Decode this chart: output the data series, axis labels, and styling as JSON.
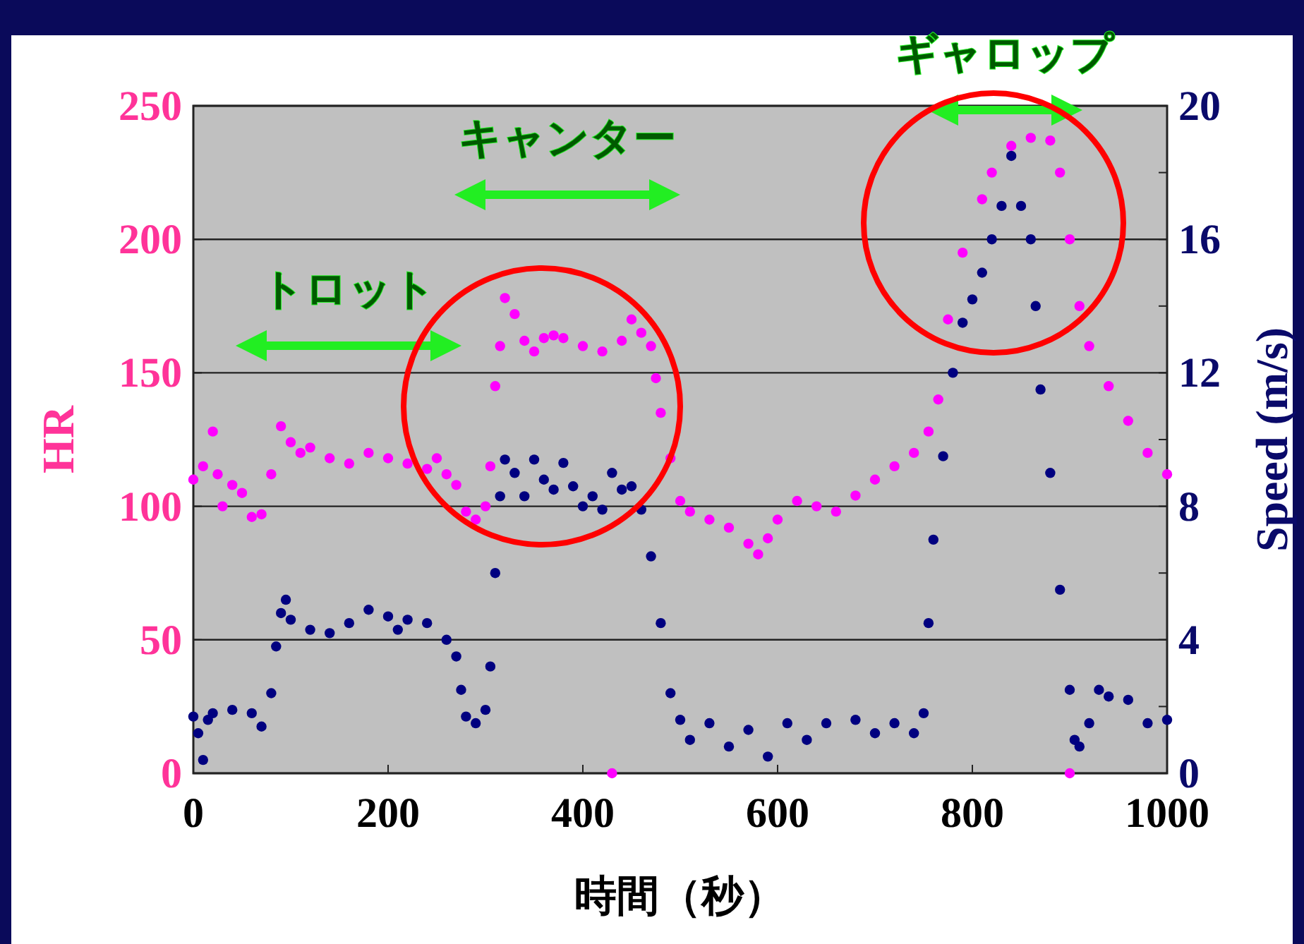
{
  "chart_data": {
    "type": "scatter",
    "xlabel": "時間（秒）",
    "ylabel": "HR",
    "y2label": "Speed (m/s)",
    "marker": "circle",
    "grid": "y",
    "xlim": [
      0,
      1000
    ],
    "xticks": [
      0,
      200,
      400,
      600,
      800,
      1000
    ],
    "ylim": [
      0,
      250
    ],
    "yticks": [
      0,
      50,
      100,
      150,
      200,
      250
    ],
    "y2lim": [
      0,
      20
    ],
    "y2ticks": [
      0,
      {
        "value": 2,
        "label": null
      },
      4,
      {
        "value": 6,
        "label": null
      },
      8,
      {
        "value": 10,
        "label": null
      },
      12,
      {
        "value": 14,
        "label": null
      },
      16,
      {
        "value": 18,
        "label": null
      },
      20
    ],
    "annotations": [
      "トロット",
      "キャンター",
      "ギャロップ"
    ],
    "series": [
      {
        "color": "#ff00ff",
        "x": [
          0,
          10,
          20,
          25,
          30,
          40,
          50,
          60,
          70,
          80,
          90,
          100,
          110,
          120,
          140,
          160,
          180,
          200,
          220,
          240,
          250,
          260,
          270,
          280,
          290,
          300,
          305,
          310,
          315,
          320,
          330,
          340,
          350,
          360,
          370,
          380,
          400,
          420,
          430,
          440,
          450,
          460,
          470,
          475,
          480,
          490,
          500,
          510,
          530,
          550,
          570,
          580,
          590,
          600,
          620,
          640,
          660,
          680,
          700,
          720,
          740,
          755,
          765,
          775,
          790,
          810,
          820,
          840,
          860,
          880,
          890,
          900,
          900,
          910,
          920,
          940,
          960,
          980,
          1000
        ],
        "values": [
          110,
          115,
          128,
          112,
          100,
          108,
          105,
          96,
          97,
          112,
          130,
          124,
          120,
          122,
          118,
          116,
          120,
          118,
          116,
          114,
          118,
          112,
          108,
          98,
          95,
          100,
          115,
          145,
          160,
          178,
          172,
          162,
          158,
          163,
          164,
          163,
          160,
          158,
          0,
          162,
          170,
          165,
          160,
          148,
          135,
          118,
          102,
          98,
          95,
          92,
          86,
          82,
          88,
          95,
          102,
          100,
          98,
          104,
          110,
          115,
          120,
          128,
          140,
          170,
          195,
          215,
          225,
          235,
          238,
          237,
          225,
          200,
          0,
          175,
          160,
          145,
          132,
          120,
          112
        ]
      },
      {
        "color": "#000080",
        "axis": "y2",
        "x": [
          0,
          5,
          10,
          15,
          20,
          40,
          60,
          70,
          80,
          85,
          90,
          95,
          100,
          120,
          140,
          160,
          180,
          200,
          210,
          220,
          240,
          260,
          270,
          275,
          280,
          290,
          300,
          305,
          310,
          315,
          320,
          330,
          340,
          350,
          360,
          370,
          380,
          390,
          400,
          410,
          420,
          430,
          440,
          450,
          460,
          470,
          480,
          490,
          500,
          510,
          530,
          550,
          570,
          590,
          610,
          630,
          650,
          680,
          700,
          720,
          740,
          750,
          755,
          760,
          770,
          780,
          790,
          800,
          810,
          820,
          830,
          840,
          850,
          860,
          865,
          870,
          880,
          890,
          900,
          905,
          910,
          920,
          930,
          940,
          960,
          980,
          1000
        ],
        "values": [
          1.7,
          1.2,
          0.4,
          1.6,
          1.8,
          1.9,
          1.8,
          1.4,
          2.4,
          3.8,
          4.8,
          5.2,
          4.6,
          4.3,
          4.2,
          4.5,
          4.9,
          4.7,
          4.3,
          4.6,
          4.5,
          4.0,
          3.5,
          2.5,
          1.7,
          1.5,
          1.9,
          3.2,
          6.0,
          8.3,
          9.4,
          9.0,
          8.3,
          9.4,
          8.8,
          8.5,
          9.3,
          8.6,
          8.0,
          8.3,
          7.9,
          9.0,
          8.5,
          8.6,
          7.9,
          6.5,
          4.5,
          2.4,
          1.6,
          1.0,
          1.5,
          0.8,
          1.3,
          0.5,
          1.5,
          1.0,
          1.5,
          1.6,
          1.2,
          1.5,
          1.2,
          1.8,
          4.5,
          7.0,
          9.5,
          12.0,
          13.5,
          14.2,
          15.0,
          16.0,
          17.0,
          18.5,
          17.0,
          16.0,
          14.0,
          11.5,
          9.0,
          5.5,
          2.5,
          1.0,
          0.8,
          1.5,
          2.5,
          2.3,
          2.2,
          1.5,
          1.6
        ]
      }
    ]
  }
}
